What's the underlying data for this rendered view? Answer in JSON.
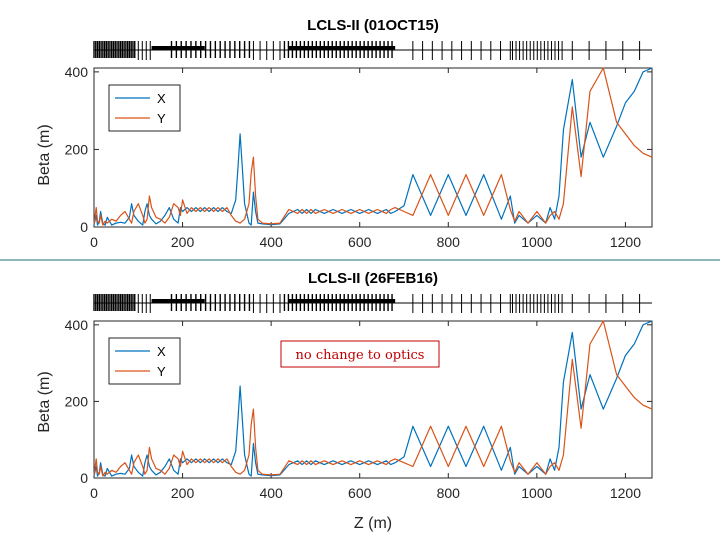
{
  "colors": {
    "x_series": "#0072BD",
    "y_series": "#D95319",
    "divider": "#1f6b7a",
    "annotation": "#c00000"
  },
  "chart_data": [
    {
      "type": "line",
      "title": "LCLS-II (01OCT15)",
      "xlabel": "",
      "ylabel": "Beta (m)",
      "xlim": [
        0,
        1260
      ],
      "ylim": [
        0,
        410
      ],
      "xticks": [
        "0",
        "200",
        "400",
        "600",
        "800",
        "1000",
        "1200"
      ],
      "yticks": [
        "0",
        "200",
        "400"
      ],
      "legend_position": "top-left",
      "annotation": "",
      "series": [
        {
          "name": "X",
          "x": [
            0,
            5,
            8,
            12,
            15,
            20,
            25,
            30,
            40,
            50,
            60,
            70,
            80,
            85,
            90,
            100,
            110,
            115,
            120,
            125,
            130,
            140,
            150,
            160,
            170,
            180,
            190,
            195,
            200,
            210,
            220,
            230,
            240,
            250,
            260,
            270,
            280,
            290,
            300,
            310,
            320,
            325,
            330,
            335,
            340,
            345,
            350,
            355,
            360,
            365,
            370,
            380,
            400,
            420,
            440,
            460,
            470,
            480,
            490,
            500,
            520,
            540,
            560,
            580,
            600,
            620,
            640,
            660,
            670,
            680,
            700,
            720,
            760,
            800,
            840,
            880,
            920,
            940,
            950,
            960,
            980,
            1000,
            1020,
            1030,
            1040,
            1050,
            1060,
            1080,
            1100,
            1120,
            1150,
            1180,
            1200,
            1220,
            1240,
            1260
          ],
          "y": [
            5,
            30,
            5,
            15,
            40,
            8,
            5,
            25,
            5,
            10,
            12,
            10,
            25,
            60,
            30,
            15,
            5,
            40,
            60,
            30,
            20,
            8,
            15,
            30,
            50,
            20,
            10,
            50,
            40,
            50,
            40,
            50,
            40,
            50,
            40,
            50,
            40,
            50,
            40,
            35,
            70,
            150,
            240,
            150,
            60,
            35,
            10,
            5,
            90,
            40,
            10,
            8,
            6,
            8,
            35,
            45,
            35,
            45,
            35,
            45,
            35,
            45,
            35,
            45,
            35,
            45,
            35,
            45,
            35,
            40,
            55,
            135,
            30,
            135,
            30,
            135,
            20,
            80,
            10,
            30,
            10,
            30,
            10,
            50,
            20,
            80,
            250,
            380,
            180,
            270,
            180,
            260,
            320,
            350,
            400,
            410
          ]
        },
        {
          "name": "Y",
          "x": [
            0,
            5,
            8,
            12,
            15,
            20,
            25,
            30,
            40,
            50,
            60,
            70,
            80,
            85,
            90,
            100,
            110,
            115,
            120,
            125,
            130,
            140,
            150,
            160,
            170,
            180,
            190,
            195,
            200,
            210,
            220,
            230,
            240,
            250,
            260,
            270,
            280,
            290,
            300,
            310,
            320,
            330,
            340,
            350,
            355,
            360,
            365,
            370,
            380,
            400,
            420,
            440,
            460,
            470,
            480,
            490,
            500,
            520,
            540,
            560,
            580,
            600,
            620,
            640,
            660,
            670,
            680,
            700,
            720,
            760,
            800,
            840,
            880,
            920,
            940,
            950,
            960,
            980,
            1000,
            1020,
            1030,
            1040,
            1050,
            1060,
            1080,
            1100,
            1120,
            1150,
            1180,
            1200,
            1220,
            1240,
            1260
          ],
          "y": [
            8,
            50,
            15,
            10,
            30,
            5,
            15,
            10,
            20,
            15,
            30,
            40,
            20,
            10,
            40,
            60,
            30,
            10,
            20,
            80,
            50,
            25,
            20,
            10,
            25,
            60,
            50,
            30,
            70,
            35,
            50,
            40,
            50,
            40,
            50,
            40,
            50,
            40,
            50,
            30,
            15,
            10,
            20,
            60,
            140,
            180,
            80,
            20,
            10,
            8,
            10,
            45,
            35,
            45,
            35,
            45,
            35,
            45,
            35,
            45,
            35,
            45,
            35,
            45,
            35,
            45,
            50,
            40,
            30,
            135,
            30,
            135,
            30,
            135,
            45,
            15,
            40,
            10,
            40,
            10,
            30,
            40,
            20,
            60,
            310,
            130,
            350,
            410,
            270,
            240,
            210,
            190,
            180
          ]
        }
      ]
    },
    {
      "type": "line",
      "title": "LCLS-II (26FEB16)",
      "xlabel": "Z (m)",
      "ylabel": "Beta (m)",
      "xlim": [
        0,
        1260
      ],
      "ylim": [
        0,
        410
      ],
      "xticks": [
        "0",
        "200",
        "400",
        "600",
        "800",
        "1000",
        "1200"
      ],
      "yticks": [
        "0",
        "200",
        "400"
      ],
      "legend_position": "top-left",
      "annotation": "no change to optics",
      "series": [
        {
          "name": "X",
          "x": [
            0,
            5,
            8,
            12,
            15,
            20,
            25,
            30,
            40,
            50,
            60,
            70,
            80,
            85,
            90,
            100,
            110,
            115,
            120,
            125,
            130,
            140,
            150,
            160,
            170,
            180,
            190,
            195,
            200,
            210,
            220,
            230,
            240,
            250,
            260,
            270,
            280,
            290,
            300,
            310,
            320,
            325,
            330,
            335,
            340,
            345,
            350,
            355,
            360,
            365,
            370,
            380,
            400,
            420,
            440,
            460,
            470,
            480,
            490,
            500,
            520,
            540,
            560,
            580,
            600,
            620,
            640,
            660,
            670,
            680,
            700,
            720,
            760,
            800,
            840,
            880,
            920,
            940,
            950,
            960,
            980,
            1000,
            1020,
            1030,
            1040,
            1050,
            1060,
            1080,
            1100,
            1120,
            1150,
            1180,
            1200,
            1220,
            1240,
            1260
          ],
          "y": [
            5,
            30,
            5,
            15,
            40,
            8,
            5,
            25,
            5,
            10,
            12,
            10,
            25,
            60,
            30,
            15,
            5,
            40,
            60,
            30,
            20,
            8,
            15,
            30,
            50,
            20,
            10,
            50,
            40,
            50,
            40,
            50,
            40,
            50,
            40,
            50,
            40,
            50,
            40,
            35,
            70,
            150,
            240,
            150,
            60,
            35,
            10,
            5,
            90,
            40,
            10,
            8,
            6,
            8,
            35,
            45,
            35,
            45,
            35,
            45,
            35,
            45,
            35,
            45,
            35,
            45,
            35,
            45,
            35,
            40,
            55,
            135,
            30,
            135,
            30,
            135,
            20,
            80,
            10,
            30,
            10,
            30,
            10,
            50,
            20,
            80,
            250,
            380,
            180,
            270,
            180,
            260,
            320,
            350,
            400,
            410
          ]
        },
        {
          "name": "Y",
          "x": [
            0,
            5,
            8,
            12,
            15,
            20,
            25,
            30,
            40,
            50,
            60,
            70,
            80,
            85,
            90,
            100,
            110,
            115,
            120,
            125,
            130,
            140,
            150,
            160,
            170,
            180,
            190,
            195,
            200,
            210,
            220,
            230,
            240,
            250,
            260,
            270,
            280,
            290,
            300,
            310,
            320,
            330,
            340,
            350,
            355,
            360,
            365,
            370,
            380,
            400,
            420,
            440,
            460,
            470,
            480,
            490,
            500,
            520,
            540,
            560,
            580,
            600,
            620,
            640,
            660,
            670,
            680,
            700,
            720,
            760,
            800,
            840,
            880,
            920,
            940,
            950,
            960,
            980,
            1000,
            1020,
            1030,
            1040,
            1050,
            1060,
            1080,
            1100,
            1120,
            1150,
            1180,
            1200,
            1220,
            1240,
            1260
          ],
          "y": [
            8,
            50,
            15,
            10,
            30,
            5,
            15,
            10,
            20,
            15,
            30,
            40,
            20,
            10,
            40,
            60,
            30,
            10,
            20,
            80,
            50,
            25,
            20,
            10,
            25,
            60,
            50,
            30,
            70,
            35,
            50,
            40,
            50,
            40,
            50,
            40,
            50,
            40,
            50,
            30,
            15,
            10,
            20,
            60,
            140,
            180,
            80,
            20,
            10,
            8,
            10,
            45,
            35,
            45,
            35,
            45,
            35,
            45,
            35,
            45,
            35,
            45,
            35,
            45,
            35,
            45,
            50,
            40,
            30,
            135,
            30,
            135,
            30,
            135,
            45,
            15,
            40,
            10,
            40,
            10,
            30,
            40,
            20,
            60,
            310,
            130,
            350,
            410,
            270,
            240,
            210,
            190,
            180
          ]
        }
      ]
    }
  ]
}
